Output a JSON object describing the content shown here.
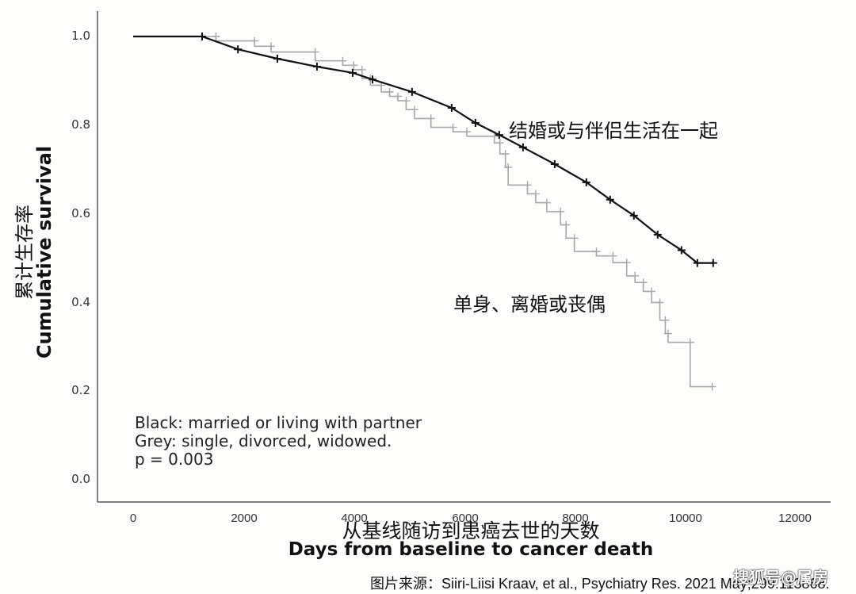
{
  "chart_data": {
    "type": "line",
    "subtype": "kaplan-meier survival curve",
    "title": "",
    "xlabel": "Days from baseline to cancer death",
    "xlabel_cn": "从基线随访到患癌去世的天数",
    "ylabel": "Cumulative survival",
    "ylabel_cn": "累计生存率",
    "xlim": [
      0,
      12000
    ],
    "ylim": [
      0.0,
      1.0
    ],
    "xticks": [
      0,
      2000,
      4000,
      6000,
      8000,
      10000,
      12000
    ],
    "yticks": [
      "0.0",
      "0.2",
      "0.4",
      "0.6",
      "0.8",
      "1.0"
    ],
    "grid": false,
    "series": [
      {
        "name": "married or living with partner",
        "label_cn": "结婚或与伴侣生活在一起",
        "color": "#111111",
        "points": [
          [
            0,
            1.0
          ],
          [
            1250,
            1.0
          ],
          [
            1900,
            0.971
          ],
          [
            2615,
            0.95
          ],
          [
            3333,
            0.932
          ],
          [
            3980,
            0.918
          ],
          [
            4340,
            0.903
          ],
          [
            5057,
            0.875
          ],
          [
            5776,
            0.839
          ],
          [
            6207,
            0.805
          ],
          [
            6638,
            0.778
          ],
          [
            7069,
            0.75
          ],
          [
            7644,
            0.712
          ],
          [
            8218,
            0.671
          ],
          [
            8649,
            0.632
          ],
          [
            9080,
            0.596
          ],
          [
            9511,
            0.553
          ],
          [
            9943,
            0.518
          ],
          [
            10230,
            0.489
          ],
          [
            10517,
            0.489
          ]
        ]
      },
      {
        "name": "single, divorced, widowed",
        "label_cn": "单身、离婚或丧偶",
        "color": "#a8a8a8",
        "points": [
          [
            0,
            1.0
          ],
          [
            1500,
            1.0
          ],
          [
            1500,
            0.99
          ],
          [
            2200,
            0.99
          ],
          [
            2200,
            0.978
          ],
          [
            2500,
            0.978
          ],
          [
            2500,
            0.965
          ],
          [
            3300,
            0.965
          ],
          [
            3300,
            0.945
          ],
          [
            3800,
            0.945
          ],
          [
            3800,
            0.935
          ],
          [
            4000,
            0.935
          ],
          [
            4000,
            0.925
          ],
          [
            4150,
            0.925
          ],
          [
            4150,
            0.905
          ],
          [
            4300,
            0.905
          ],
          [
            4300,
            0.89
          ],
          [
            4500,
            0.89
          ],
          [
            4500,
            0.875
          ],
          [
            4650,
            0.875
          ],
          [
            4650,
            0.865
          ],
          [
            4800,
            0.865
          ],
          [
            4800,
            0.855
          ],
          [
            4950,
            0.855
          ],
          [
            4950,
            0.835
          ],
          [
            5100,
            0.835
          ],
          [
            5100,
            0.815
          ],
          [
            5400,
            0.815
          ],
          [
            5400,
            0.795
          ],
          [
            5800,
            0.795
          ],
          [
            5800,
            0.785
          ],
          [
            6050,
            0.785
          ],
          [
            6050,
            0.775
          ],
          [
            6550,
            0.775
          ],
          [
            6550,
            0.76
          ],
          [
            6650,
            0.76
          ],
          [
            6650,
            0.735
          ],
          [
            6750,
            0.735
          ],
          [
            6750,
            0.705
          ],
          [
            6800,
            0.705
          ],
          [
            6800,
            0.665
          ],
          [
            7150,
            0.665
          ],
          [
            7150,
            0.645
          ],
          [
            7300,
            0.645
          ],
          [
            7300,
            0.625
          ],
          [
            7500,
            0.625
          ],
          [
            7500,
            0.605
          ],
          [
            7750,
            0.605
          ],
          [
            7750,
            0.575
          ],
          [
            7850,
            0.575
          ],
          [
            7850,
            0.545
          ],
          [
            8000,
            0.545
          ],
          [
            8000,
            0.515
          ],
          [
            8400,
            0.515
          ],
          [
            8400,
            0.505
          ],
          [
            8700,
            0.505
          ],
          [
            8700,
            0.49
          ],
          [
            8950,
            0.49
          ],
          [
            8950,
            0.46
          ],
          [
            9100,
            0.46
          ],
          [
            9100,
            0.445
          ],
          [
            9250,
            0.445
          ],
          [
            9250,
            0.425
          ],
          [
            9400,
            0.425
          ],
          [
            9400,
            0.4
          ],
          [
            9550,
            0.4
          ],
          [
            9550,
            0.36
          ],
          [
            9650,
            0.36
          ],
          [
            9650,
            0.33
          ],
          [
            9700,
            0.33
          ],
          [
            9700,
            0.31
          ],
          [
            10100,
            0.31
          ],
          [
            10100,
            0.21
          ],
          [
            10500,
            0.21
          ]
        ]
      }
    ],
    "annotations": [
      "Black: married or living with partner",
      "Grey: single, divorced, widowed.",
      "p = 0.003"
    ]
  },
  "axes": {
    "y_ticks": [
      "1.0",
      "0.8",
      "0.6",
      "0.4",
      "0.2",
      "0.0"
    ],
    "x_ticks": [
      "0",
      "2000",
      "4000",
      "6000",
      "8000",
      "10000",
      "12000"
    ],
    "ylabel_cn": "累计生存率",
    "ylabel_en": "Cumulative survival",
    "xlabel_cn": "从基线随访到患癌去世的天数",
    "xlabel_en": "Days from baseline to cancer death"
  },
  "labels": {
    "married_cn": "结婚或与伴侣生活在一起",
    "single_cn": "单身、离婚或丧偶"
  },
  "legend": {
    "line1": "Black: married or living with partner",
    "line2": "Grey: single, divorced, widowed.",
    "line3": "p = 0.003"
  },
  "footer": {
    "source": "图片来源：Siiri-Liisi Kraav, et al., Psychiatry Res. 2021 May;299:113868.",
    "watermark": "搜狐号@属房"
  },
  "colors": {
    "married": "#111111",
    "single": "#a8a8a8",
    "axis": "#555555",
    "background": "#fdfdfb"
  }
}
